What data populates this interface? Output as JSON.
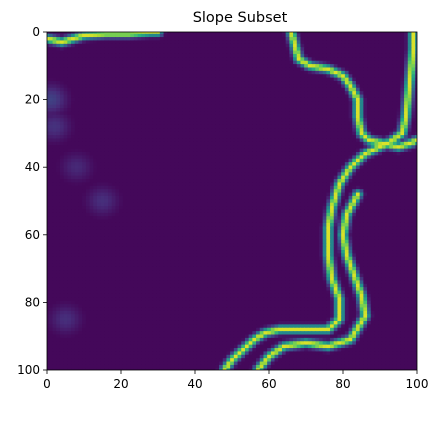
{
  "chart_data": {
    "type": "heatmap",
    "title": "Slope Subset",
    "xlabel": "",
    "ylabel": "",
    "grid": false,
    "colormap": "viridis",
    "xlim": [
      0,
      100
    ],
    "ylim": [
      100,
      0
    ],
    "x_ticks": [
      0,
      20,
      40,
      60,
      80,
      100
    ],
    "y_ticks": [
      0,
      20,
      40,
      60,
      80,
      100
    ],
    "value_range": [
      0,
      1
    ],
    "background_value": 0.02,
    "high_slope_band": {
      "peak_value": 0.95,
      "path": [
        [
          0,
          2
        ],
        [
          4,
          3
        ],
        [
          10,
          1
        ],
        [
          16,
          0.5
        ],
        [
          22,
          0.5
        ],
        [
          28,
          0
        ],
        [
          30,
          0
        ]
      ]
    },
    "band2": {
      "peak_value": 0.95,
      "path": [
        [
          66,
          0
        ],
        [
          67,
          4
        ],
        [
          68,
          8
        ],
        [
          71,
          10
        ],
        [
          76,
          11
        ],
        [
          80,
          13
        ],
        [
          82,
          16
        ],
        [
          84,
          20
        ],
        [
          84,
          25
        ],
        [
          85,
          30
        ],
        [
          87,
          32
        ],
        [
          91,
          33
        ],
        [
          95,
          34
        ],
        [
          98,
          33
        ],
        [
          100,
          32
        ]
      ]
    },
    "band3": {
      "peak_value": 0.95,
      "path": [
        [
          99,
          0
        ],
        [
          99,
          5
        ],
        [
          98,
          15
        ],
        [
          97,
          25
        ],
        [
          96,
          30
        ],
        [
          92,
          33
        ],
        [
          86,
          36
        ],
        [
          82,
          40
        ],
        [
          79,
          45
        ],
        [
          77,
          52
        ],
        [
          76,
          58
        ],
        [
          76,
          66
        ],
        [
          77,
          73
        ],
        [
          79,
          79
        ],
        [
          79,
          85
        ],
        [
          76,
          88
        ],
        [
          70,
          88
        ],
        [
          63,
          88
        ],
        [
          59,
          89
        ],
        [
          56,
          91
        ],
        [
          53,
          94
        ],
        [
          50,
          97
        ],
        [
          48,
          100
        ]
      ]
    },
    "band4": {
      "peak_value": 0.95,
      "path": [
        [
          84,
          48
        ],
        [
          81,
          54
        ],
        [
          80,
          60
        ],
        [
          81,
          66
        ],
        [
          83,
          72
        ],
        [
          85,
          78
        ],
        [
          86,
          84
        ],
        [
          82,
          91
        ],
        [
          76,
          93
        ],
        [
          70,
          92
        ],
        [
          64,
          93
        ],
        [
          60,
          96
        ],
        [
          57,
          100
        ]
      ]
    },
    "faint_features": [
      {
        "x": 1,
        "y": 20,
        "value": 0.2
      },
      {
        "x": 2,
        "y": 28,
        "value": 0.15
      },
      {
        "x": 8,
        "y": 40,
        "value": 0.12
      },
      {
        "x": 15,
        "y": 50,
        "value": 0.14
      },
      {
        "x": 5,
        "y": 85,
        "value": 0.14
      }
    ]
  }
}
